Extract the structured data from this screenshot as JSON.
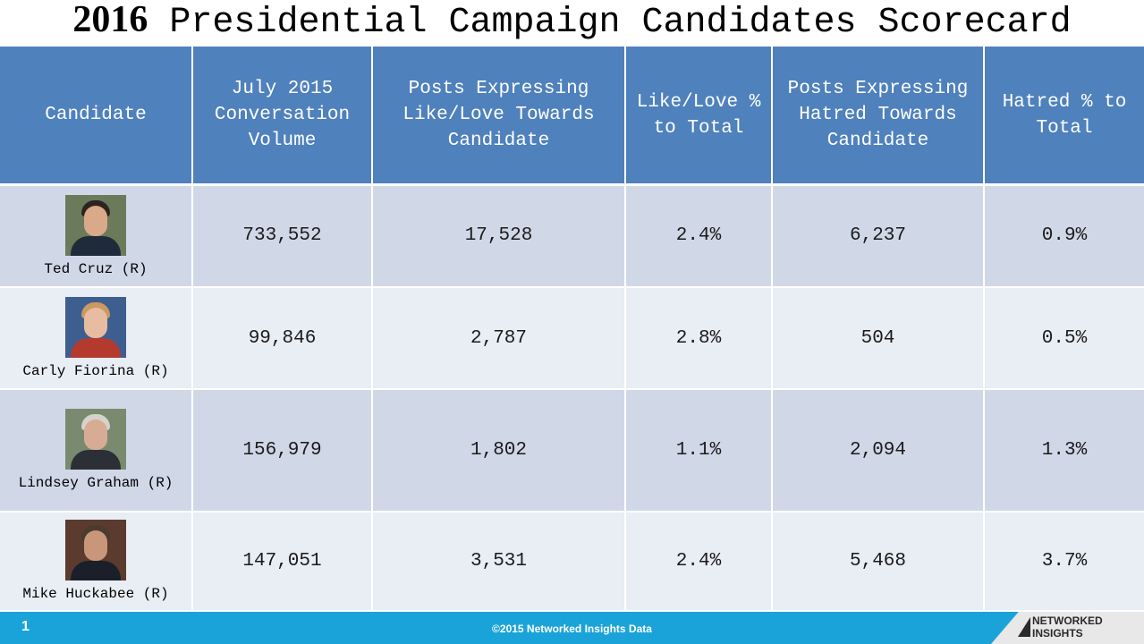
{
  "title": {
    "year": "2016",
    "rest": "Presidential Campaign Candidates Scorecard"
  },
  "headers": {
    "candidate": "Candidate",
    "volume": "July 2015 Conversation Volume",
    "like_posts": "Posts Expressing Like/Love Towards Candidate",
    "like_pct": "Like/Love % to Total",
    "hate_posts": "Posts Expressing Hatred Towards Candidate",
    "hate_pct": "Hatred % to Total"
  },
  "rows": [
    {
      "name": "Ted Cruz (R)",
      "volume": "733,552",
      "like_posts": "17,528",
      "like_pct": "2.4%",
      "hate_posts": "6,237",
      "hate_pct": "0.9%"
    },
    {
      "name": "Carly Fiorina (R)",
      "volume": "99,846",
      "like_posts": "2,787",
      "like_pct": "2.8%",
      "hate_posts": "504",
      "hate_pct": "0.5%"
    },
    {
      "name": "Lindsey Graham (R)",
      "volume": "156,979",
      "like_posts": "1,802",
      "like_pct": "1.1%",
      "hate_posts": "2,094",
      "hate_pct": "1.3%"
    },
    {
      "name": "Mike Huckabee (R)",
      "volume": "147,051",
      "like_posts": "3,531",
      "like_pct": "2.4%",
      "hate_posts": "5,468",
      "hate_pct": "3.7%"
    }
  ],
  "footer": {
    "page_number": "1",
    "copyright": "©2015 Networked Insights Data",
    "logo_line1": "NETWORKED",
    "logo_line2": "INSIGHTS"
  },
  "colors": {
    "header_bg": "#4f81bd",
    "row_dark": "#d0d8e8",
    "row_light": "#e9edf4",
    "footer_bg": "#1aa3d9"
  }
}
